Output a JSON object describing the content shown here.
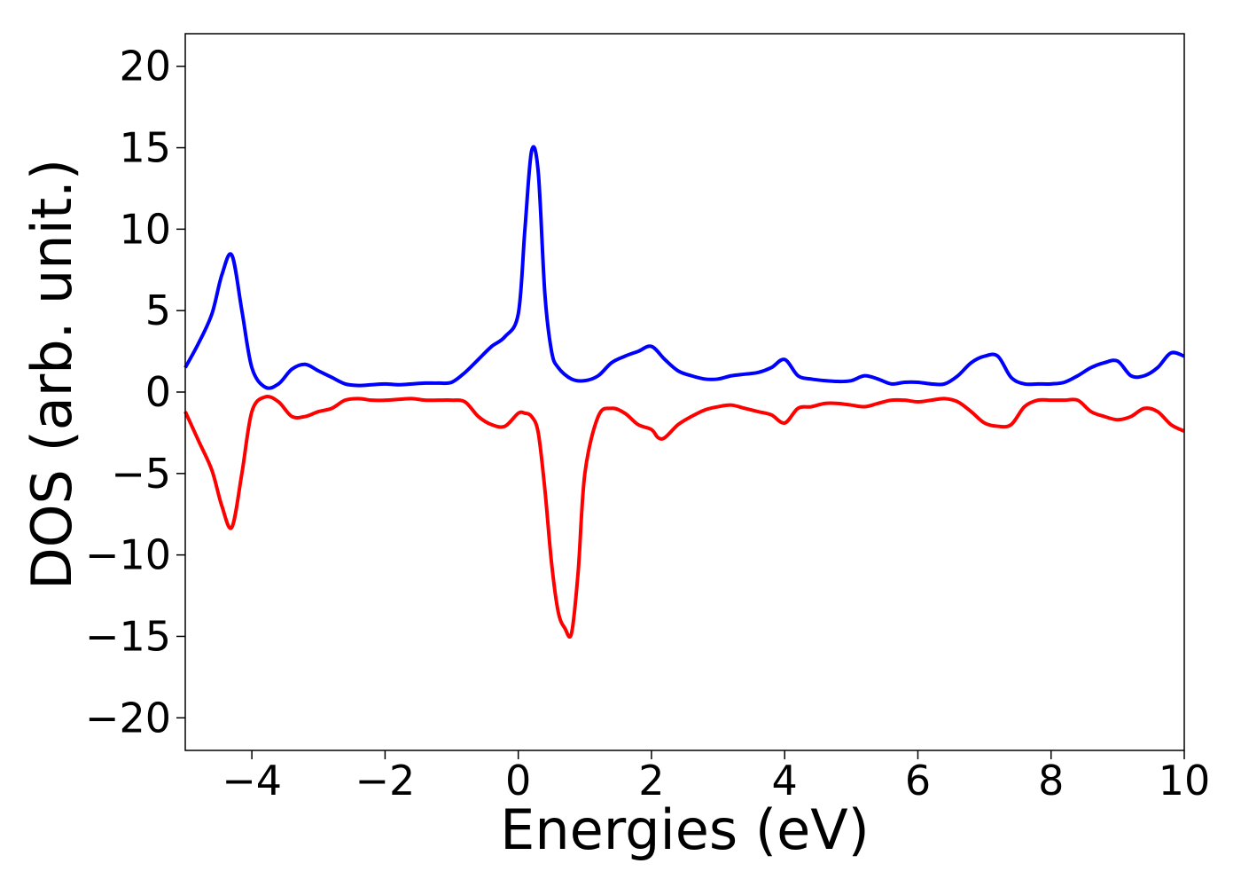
{
  "chart_data": {
    "type": "line",
    "title": "",
    "xlabel": "Energies (eV)",
    "ylabel": "DOS (arb. unit.)",
    "xlim": [
      -5,
      10
    ],
    "ylim": [
      -22,
      22
    ],
    "x_ticks": [
      -4,
      -2,
      0,
      2,
      4,
      6,
      8,
      10
    ],
    "x_tick_labels": [
      "−4",
      "−2",
      "0",
      "2",
      "4",
      "6",
      "8",
      "10"
    ],
    "y_ticks": [
      20,
      15,
      10,
      5,
      0,
      -5,
      -10,
      -15,
      -20
    ],
    "y_tick_labels": [
      "20",
      "15",
      "10",
      "5",
      "0",
      "−5",
      "−10",
      "−15",
      "−20"
    ],
    "grid": false,
    "legend": "none",
    "series": [
      {
        "color": "#0000ff",
        "x": [
          -5,
          -4.8,
          -4.6,
          -4.45,
          -4.3,
          -4.15,
          -4.0,
          -3.8,
          -3.6,
          -3.4,
          -3.2,
          -3.0,
          -2.8,
          -2.6,
          -2.4,
          -2.2,
          -2.0,
          -1.8,
          -1.6,
          -1.4,
          -1.2,
          -1.0,
          -0.8,
          -0.6,
          -0.4,
          -0.2,
          0.0,
          0.1,
          0.2,
          0.3,
          0.4,
          0.5,
          0.6,
          0.8,
          1.0,
          1.2,
          1.4,
          1.6,
          1.8,
          2.0,
          2.2,
          2.4,
          2.6,
          2.8,
          3.0,
          3.2,
          3.4,
          3.6,
          3.8,
          4.0,
          4.2,
          4.4,
          4.6,
          4.8,
          5.0,
          5.2,
          5.4,
          5.6,
          5.8,
          6.0,
          6.2,
          6.4,
          6.6,
          6.8,
          7.0,
          7.2,
          7.4,
          7.6,
          7.8,
          8.0,
          8.2,
          8.4,
          8.6,
          8.8,
          9.0,
          9.2,
          9.4,
          9.6,
          9.8,
          10.0
        ],
        "y": [
          1.5,
          3.0,
          4.8,
          7.2,
          8.4,
          5.0,
          1.5,
          0.3,
          0.5,
          1.4,
          1.7,
          1.3,
          0.9,
          0.5,
          0.4,
          0.45,
          0.5,
          0.45,
          0.5,
          0.55,
          0.55,
          0.6,
          1.2,
          2.0,
          2.8,
          3.4,
          4.8,
          10.0,
          14.8,
          13.5,
          6.0,
          2.5,
          1.5,
          0.8,
          0.7,
          1.0,
          1.8,
          2.2,
          2.5,
          2.8,
          2.0,
          1.3,
          1.0,
          0.8,
          0.8,
          1.0,
          1.1,
          1.2,
          1.5,
          2.0,
          1.0,
          0.8,
          0.7,
          0.65,
          0.7,
          1.0,
          0.8,
          0.5,
          0.6,
          0.6,
          0.5,
          0.5,
          1.0,
          1.8,
          2.2,
          2.2,
          0.9,
          0.5,
          0.5,
          0.5,
          0.6,
          1.0,
          1.5,
          1.8,
          1.9,
          1.0,
          1.0,
          1.5,
          2.4,
          2.2
        ]
      },
      {
        "color": "#ff0000",
        "x": [
          -5,
          -4.8,
          -4.6,
          -4.45,
          -4.3,
          -4.15,
          -4.0,
          -3.8,
          -3.6,
          -3.4,
          -3.2,
          -3.0,
          -2.8,
          -2.6,
          -2.4,
          -2.2,
          -2.0,
          -1.8,
          -1.6,
          -1.4,
          -1.2,
          -1.0,
          -0.8,
          -0.6,
          -0.4,
          -0.2,
          0.0,
          0.1,
          0.2,
          0.3,
          0.4,
          0.5,
          0.6,
          0.7,
          0.8,
          0.9,
          1.0,
          1.2,
          1.4,
          1.6,
          1.8,
          2.0,
          2.1,
          2.2,
          2.4,
          2.6,
          2.8,
          3.0,
          3.2,
          3.4,
          3.6,
          3.8,
          4.0,
          4.2,
          4.4,
          4.6,
          4.8,
          5.0,
          5.2,
          5.4,
          5.6,
          5.8,
          6.0,
          6.2,
          6.4,
          6.6,
          6.8,
          7.0,
          7.2,
          7.4,
          7.6,
          7.8,
          8.0,
          8.2,
          8.4,
          8.6,
          8.8,
          9.0,
          9.2,
          9.4,
          9.6,
          9.8,
          10.0
        ],
        "y": [
          -1.2,
          -3.0,
          -4.8,
          -7.0,
          -8.3,
          -5.0,
          -1.2,
          -0.3,
          -0.6,
          -1.5,
          -1.5,
          -1.2,
          -1.0,
          -0.5,
          -0.4,
          -0.5,
          -0.5,
          -0.45,
          -0.4,
          -0.5,
          -0.5,
          -0.5,
          -0.6,
          -1.5,
          -2.0,
          -2.1,
          -1.3,
          -1.3,
          -1.5,
          -2.5,
          -6.0,
          -10.5,
          -13.5,
          -14.5,
          -14.8,
          -11.0,
          -5.0,
          -1.5,
          -1.0,
          -1.3,
          -2.0,
          -2.3,
          -2.8,
          -2.8,
          -2.0,
          -1.5,
          -1.1,
          -0.9,
          -0.8,
          -1.0,
          -1.2,
          -1.4,
          -1.9,
          -1.0,
          -0.9,
          -0.7,
          -0.7,
          -0.8,
          -0.9,
          -0.7,
          -0.5,
          -0.5,
          -0.6,
          -0.5,
          -0.4,
          -0.6,
          -1.2,
          -1.9,
          -2.1,
          -2.0,
          -0.9,
          -0.5,
          -0.5,
          -0.5,
          -0.5,
          -1.2,
          -1.5,
          -1.7,
          -1.5,
          -1.0,
          -1.2,
          -2.0,
          -2.4
        ]
      }
    ]
  }
}
